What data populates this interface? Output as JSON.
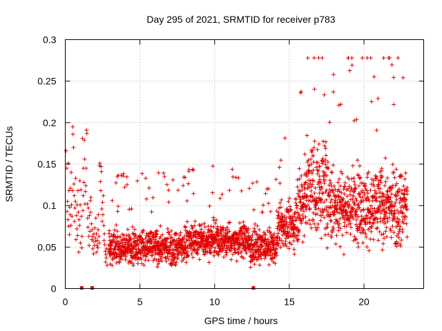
{
  "chart_data": {
    "type": "scatter",
    "title": "Day 295 of 2021, SRMTID for receiver p783",
    "xlabel": "GPS time / hours",
    "ylabel": "SRMTID / TECUs",
    "xlim": [
      0,
      24
    ],
    "ylim": [
      0,
      0.3
    ],
    "xticks": [
      0,
      5,
      10,
      15,
      20
    ],
    "yticks": [
      0,
      0.05,
      0.1,
      0.15,
      0.2,
      0.25,
      0.3
    ],
    "xtick_labels": [
      "0",
      "5",
      "10",
      "15",
      "20"
    ],
    "ytick_labels": [
      "0",
      "0.05",
      "0.1",
      "0.15",
      "0.2",
      "0.25",
      "0.3"
    ],
    "grid": true,
    "marker": "+",
    "marker_color": "#e00000",
    "zero_value_times": [
      1.1,
      1.8,
      12.6
    ],
    "series": [
      {
        "name": "SRMTID",
        "description_segments": [
          {
            "x_range": [
              0,
              2.9
            ],
            "mean": 0.09,
            "spread": 0.04
          },
          {
            "x_range": [
              2.9,
              14.2
            ],
            "mean": 0.05,
            "spread": 0.02
          },
          {
            "x_range": [
              14.2,
              15.4
            ],
            "mean": 0.075,
            "spread": 0.025
          },
          {
            "x_range": [
              15.4,
              22.9
            ],
            "mean": 0.1,
            "spread": 0.045
          }
        ],
        "points": [
          [
            0.05,
            0.166
          ],
          [
            0.1,
            0.145
          ],
          [
            0.12,
            0.093
          ],
          [
            0.15,
            0.105
          ],
          [
            0.18,
            0.083
          ],
          [
            0.2,
            0.151
          ],
          [
            0.22,
            0.075
          ],
          [
            0.25,
            0.118
          ],
          [
            0.28,
            0.065
          ],
          [
            0.3,
            0.098
          ],
          [
            0.33,
            0.089
          ],
          [
            0.35,
            0.121
          ],
          [
            0.38,
            0.076
          ],
          [
            0.4,
            0.14
          ],
          [
            0.42,
            0.101
          ],
          [
            0.45,
            0.087
          ],
          [
            0.48,
            0.118
          ],
          [
            0.5,
            0.195
          ],
          [
            0.52,
            0.186
          ],
          [
            0.55,
            0.17
          ],
          [
            0.58,
            0.126
          ],
          [
            0.6,
            0.112
          ],
          [
            0.62,
            0.081
          ],
          [
            0.65,
            0.097
          ],
          [
            0.68,
            0.105
          ],
          [
            0.7,
            0.133
          ],
          [
            0.72,
            0.059
          ],
          [
            0.75,
            0.088
          ],
          [
            0.78,
            0.072
          ],
          [
            0.8,
            0.101
          ],
          [
            0.82,
            0.064
          ],
          [
            0.85,
            0.118
          ],
          [
            0.88,
            0.092
          ],
          [
            0.9,
            0.044
          ],
          [
            0.92,
            0.083
          ],
          [
            0.95,
            0.076
          ],
          [
            0.98,
            0.13
          ],
          [
            1.0,
            0.101
          ],
          [
            1.02,
            0.055
          ],
          [
            1.05,
            0.119
          ],
          [
            1.08,
            0.087
          ],
          [
            1.1,
            0.049
          ],
          [
            1.12,
            0.063
          ],
          [
            1.15,
            0.181
          ],
          [
            1.18,
            0.094
          ],
          [
            1.2,
            0.112
          ],
          [
            1.22,
            0.145
          ],
          [
            1.25,
            0.128
          ],
          [
            1.28,
            0.179
          ],
          [
            1.3,
            0.156
          ],
          [
            1.32,
            0.102
          ],
          [
            1.35,
            0.117
          ],
          [
            1.38,
            0.124
          ],
          [
            1.4,
            0.145
          ],
          [
            1.42,
            0.191
          ],
          [
            1.45,
            0.187
          ],
          [
            1.48,
            0.102
          ],
          [
            1.5,
            0.085
          ],
          [
            1.52,
            0.074
          ],
          [
            1.55,
            0.097
          ],
          [
            1.58,
            0.063
          ],
          [
            1.6,
            0.052
          ],
          [
            1.62,
            0.088
          ],
          [
            1.65,
            0.069
          ],
          [
            1.68,
            0.106
          ],
          [
            1.7,
            0.092
          ],
          [
            1.72,
            0.11
          ],
          [
            1.75,
            0.078
          ],
          [
            1.78,
            0.059
          ],
          [
            1.8,
            0.071
          ],
          [
            1.82,
            0.063
          ],
          [
            1.85,
            0.048
          ],
          [
            1.88,
            0.057
          ],
          [
            1.9,
            0.042
          ],
          [
            1.92,
            0.066
          ],
          [
            1.95,
            0.052
          ],
          [
            1.98,
            0.073
          ],
          [
            2.0,
            0.061
          ],
          [
            2.02,
            0.057
          ],
          [
            2.05,
            0.085
          ],
          [
            2.08,
            0.066
          ],
          [
            2.1,
            0.044
          ],
          [
            2.12,
            0.052
          ],
          [
            2.15,
            0.058
          ],
          [
            2.18,
            0.049
          ],
          [
            2.2,
            0.071
          ],
          [
            2.22,
            0.089
          ],
          [
            2.25,
            0.063
          ],
          [
            2.28,
            0.055
          ],
          [
            2.3,
            0.148
          ],
          [
            2.32,
            0.151
          ],
          [
            2.35,
            0.129
          ],
          [
            2.38,
            0.118
          ],
          [
            2.4,
            0.147
          ],
          [
            2.42,
            0.141
          ],
          [
            2.45,
            0.096
          ],
          [
            2.48,
            0.081
          ],
          [
            2.5,
            0.104
          ],
          [
            2.52,
            0.089
          ],
          [
            2.55,
            0.112
          ],
          [
            2.58,
            0.076
          ],
          [
            2.6,
            0.058
          ],
          [
            2.62,
            0.066
          ],
          [
            2.65,
            0.053
          ],
          [
            2.68,
            0.045
          ],
          [
            2.7,
            0.032
          ],
          [
            2.72,
            0.041
          ],
          [
            2.75,
            0.037
          ],
          [
            2.78,
            0.048
          ],
          [
            2.8,
            0.028
          ]
        ]
      }
    ]
  }
}
